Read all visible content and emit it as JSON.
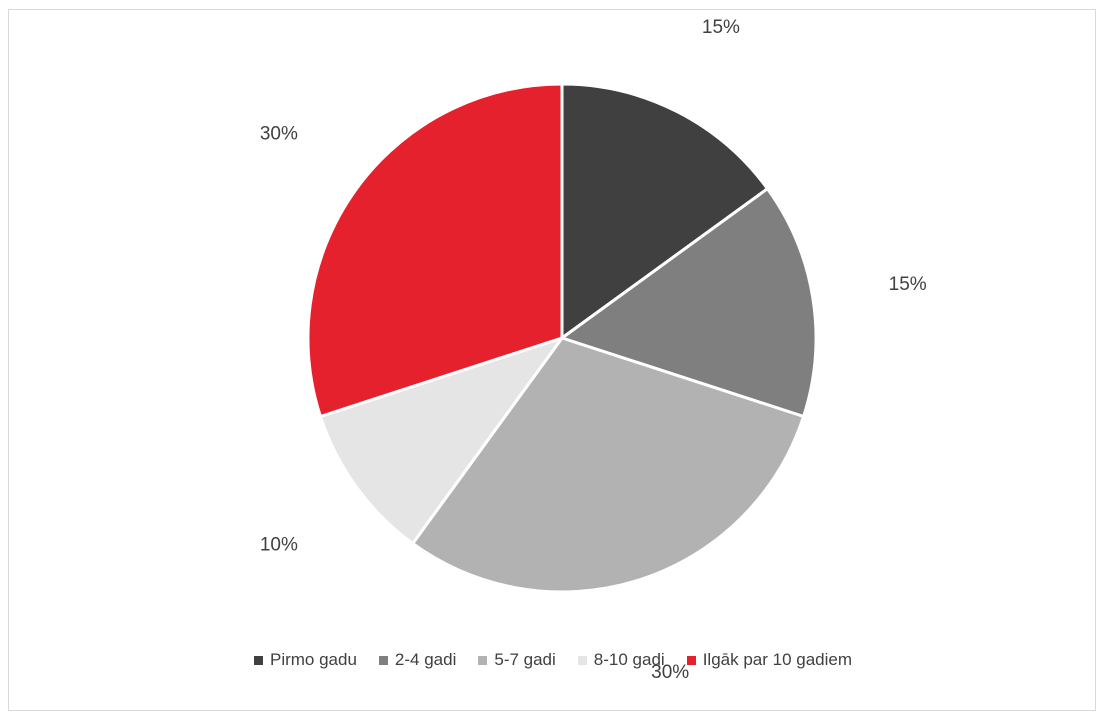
{
  "chart_data": {
    "type": "pie",
    "title": "",
    "slices": [
      {
        "label": "Pirmo gadu",
        "value": 15,
        "display": "15%",
        "color": "#404040"
      },
      {
        "label": "2-4 gadi",
        "value": 15,
        "display": "15%",
        "color": "#7f7f7f"
      },
      {
        "label": "5-7 gadi",
        "value": 30,
        "display": "30%",
        "color": "#b2b2b2"
      },
      {
        "label": "8-10 gadi",
        "value": 10,
        "display": "10%",
        "color": "#e5e5e5"
      },
      {
        "label": "Ilgāk par 10 gadiem",
        "value": 30,
        "display": "30%",
        "color": "#e6212e"
      }
    ],
    "legend_position": "bottom",
    "start_angle": "12 o'clock, clockwise"
  }
}
